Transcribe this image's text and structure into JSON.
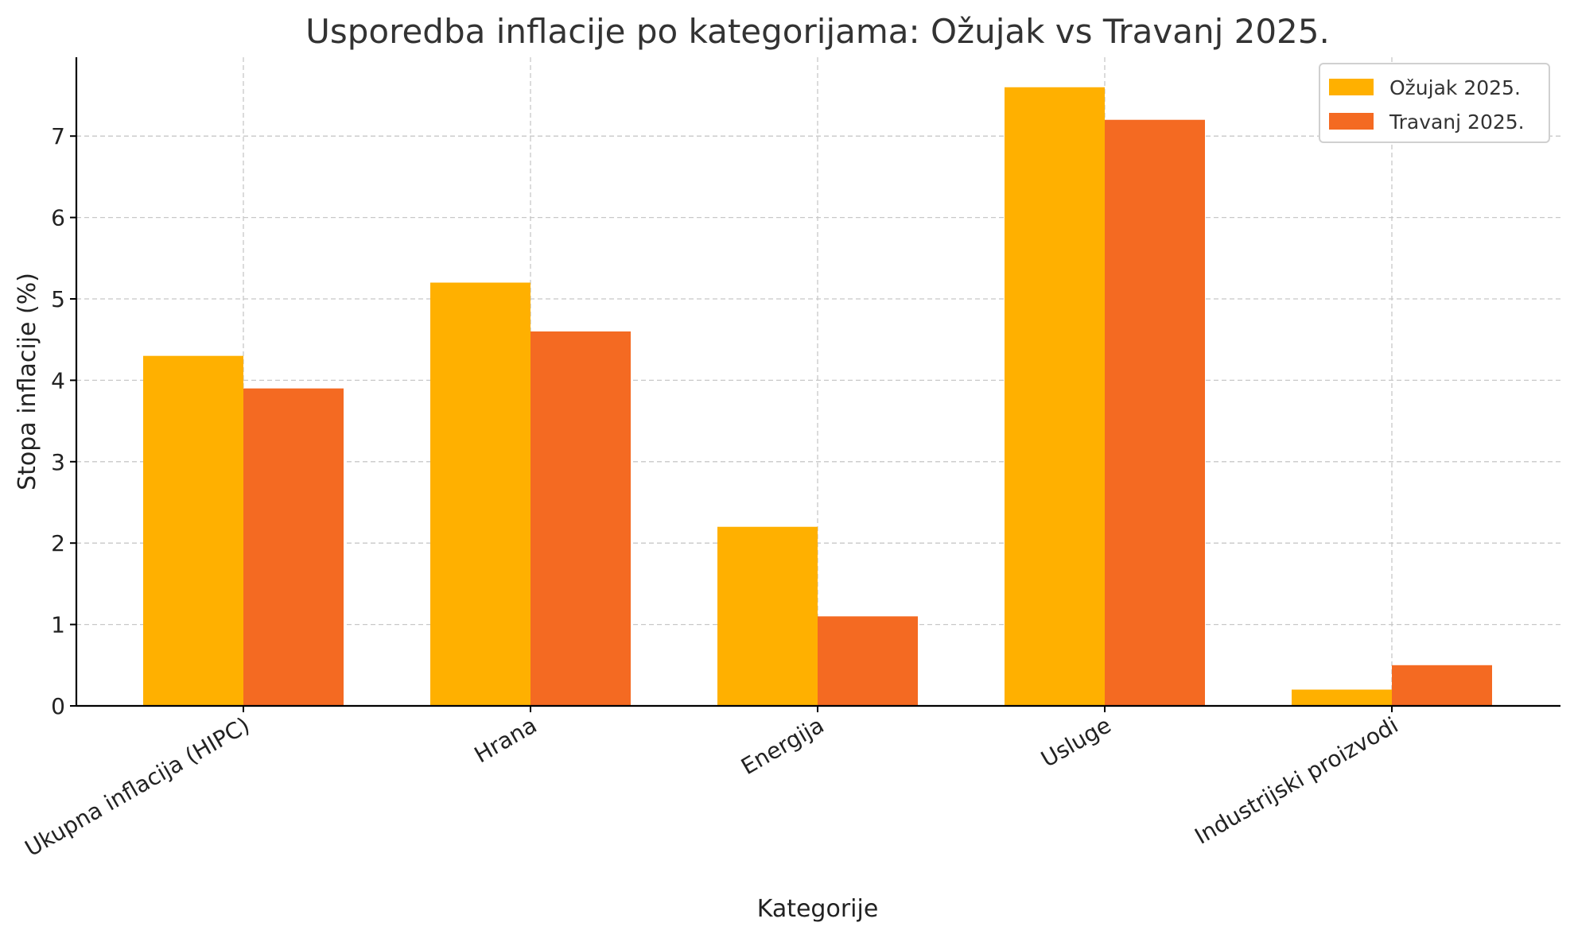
{
  "chart_data": {
    "type": "bar",
    "title": "Usporedba inflacije po kategorijama: Ožujak vs Travanj 2025.",
    "xlabel": "Kategorije",
    "ylabel": "Stopa inflacije (%)",
    "categories": [
      "Ukupna inflacija (HIPC)",
      "Hrana",
      "Energija",
      "Usluge",
      "Industrijski proizvodi"
    ],
    "series": [
      {
        "name": "Ožujak 2025.",
        "color": "#FFB000",
        "values": [
          4.3,
          5.2,
          2.2,
          7.6,
          0.2
        ]
      },
      {
        "name": "Travanj 2025.",
        "color": "#F46A22",
        "values": [
          3.9,
          4.6,
          1.1,
          7.2,
          0.5
        ]
      }
    ],
    "ylim": [
      0,
      8
    ],
    "yticks": [
      0,
      1,
      2,
      3,
      4,
      5,
      6,
      7
    ],
    "grid": true,
    "legend_position": "top-right"
  }
}
